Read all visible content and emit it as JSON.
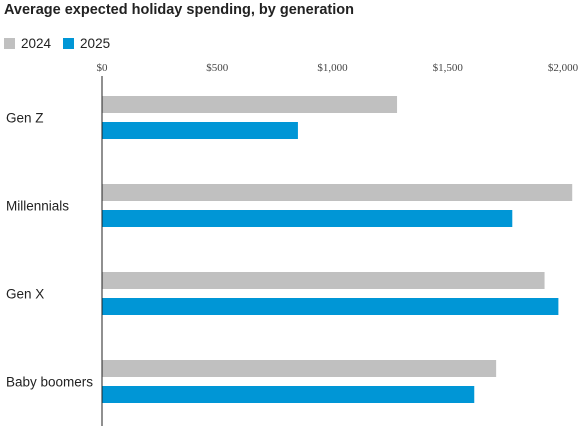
{
  "chart_data": {
    "type": "bar",
    "orientation": "horizontal",
    "title": "Average expected holiday spending, by generation",
    "categories": [
      "Gen Z",
      "Millennials",
      "Gen X",
      "Baby boomers"
    ],
    "series": [
      {
        "name": "2024",
        "color": "#c0c0c0",
        "values": [
          1280,
          2040,
          1920,
          1710
        ]
      },
      {
        "name": "2025",
        "color": "#0096d6",
        "values": [
          850,
          1780,
          1980,
          1615
        ]
      }
    ],
    "xlim": [
      0,
      2000
    ],
    "xticks": [
      0,
      500,
      1000,
      1500,
      2000
    ],
    "xtick_labels": [
      "$0",
      "$500",
      "$1,000",
      "$1,500",
      "$2,000"
    ],
    "legend_position": "top-left",
    "grid": false
  }
}
